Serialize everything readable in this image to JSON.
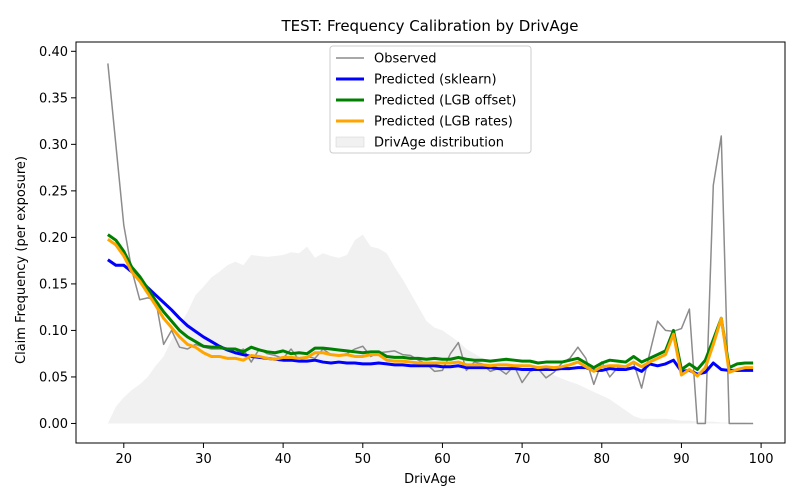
{
  "chart_data": {
    "type": "line",
    "title": "TEST: Frequency Calibration by DrivAge",
    "xlabel": "DrivAge",
    "ylabel": "Claim Frequency (per exposure)",
    "xlim": [
      14,
      103
    ],
    "ylim": [
      -0.021,
      0.41
    ],
    "x_ticks": [
      20,
      30,
      40,
      50,
      60,
      70,
      80,
      90,
      100
    ],
    "y_ticks": [
      0.0,
      0.05,
      0.1,
      0.15,
      0.2,
      0.25,
      0.3,
      0.35,
      0.4
    ],
    "y_tick_labels": [
      "0.00",
      "0.05",
      "0.10",
      "0.15",
      "0.20",
      "0.25",
      "0.30",
      "0.35",
      "0.40"
    ],
    "grid": false,
    "legend_position": "upper center",
    "x": [
      18,
      19,
      20,
      21,
      22,
      23,
      24,
      25,
      26,
      27,
      28,
      29,
      30,
      31,
      32,
      33,
      34,
      35,
      36,
      37,
      38,
      39,
      40,
      41,
      42,
      43,
      44,
      45,
      46,
      47,
      48,
      49,
      50,
      51,
      52,
      53,
      54,
      55,
      56,
      57,
      58,
      59,
      60,
      61,
      62,
      63,
      64,
      65,
      66,
      67,
      68,
      69,
      70,
      71,
      72,
      73,
      74,
      75,
      76,
      77,
      78,
      79,
      80,
      81,
      82,
      83,
      84,
      85,
      86,
      87,
      88,
      89,
      90,
      91,
      92,
      93,
      94,
      95,
      96,
      97,
      98,
      99
    ],
    "distribution": {
      "name": "DrivAge distribution",
      "color": "#e0e0e0",
      "values": [
        0.0,
        0.018,
        0.028,
        0.036,
        0.042,
        0.05,
        0.062,
        0.072,
        0.09,
        0.105,
        0.12,
        0.138,
        0.147,
        0.157,
        0.163,
        0.17,
        0.174,
        0.17,
        0.181,
        0.18,
        0.179,
        0.18,
        0.181,
        0.184,
        0.183,
        0.19,
        0.178,
        0.183,
        0.18,
        0.178,
        0.181,
        0.197,
        0.203,
        0.19,
        0.188,
        0.183,
        0.168,
        0.155,
        0.14,
        0.125,
        0.11,
        0.103,
        0.1,
        0.094,
        0.088,
        0.08,
        0.075,
        0.07,
        0.068,
        0.068,
        0.068,
        0.066,
        0.064,
        0.061,
        0.058,
        0.055,
        0.052,
        0.048,
        0.045,
        0.042,
        0.038,
        0.034,
        0.03,
        0.026,
        0.02,
        0.014,
        0.008,
        0.005,
        0.005,
        0.005,
        0.005,
        0.004,
        0.003,
        0.003,
        0.002,
        0.002,
        0.002,
        0.001,
        0.001,
        0.001,
        0.001,
        0.0
      ]
    },
    "series": [
      {
        "name": "Observed",
        "color": "#8c8c8c",
        "width": 1.5,
        "values": [
          0.387,
          0.3,
          0.213,
          0.165,
          0.133,
          0.135,
          0.133,
          0.085,
          0.1,
          0.082,
          0.08,
          0.085,
          0.082,
          0.08,
          0.08,
          0.08,
          0.075,
          0.08,
          0.066,
          0.08,
          0.075,
          0.073,
          0.07,
          0.08,
          0.068,
          0.072,
          0.07,
          0.08,
          0.074,
          0.073,
          0.075,
          0.08,
          0.083,
          0.072,
          0.076,
          0.077,
          0.078,
          0.074,
          0.073,
          0.068,
          0.064,
          0.056,
          0.057,
          0.075,
          0.087,
          0.057,
          0.066,
          0.064,
          0.056,
          0.059,
          0.053,
          0.062,
          0.044,
          0.056,
          0.059,
          0.049,
          0.055,
          0.065,
          0.07,
          0.082,
          0.07,
          0.042,
          0.066,
          0.05,
          0.06,
          0.06,
          0.065,
          0.038,
          0.075,
          0.11,
          0.1,
          0.099,
          0.102,
          0.123,
          0.0,
          0.0,
          0.256,
          0.309,
          0.0,
          0.0,
          0.0,
          0.0
        ]
      },
      {
        "name": "Predicted (sklearn)",
        "color": "#0000ff",
        "width": 3,
        "values": [
          0.176,
          0.17,
          0.17,
          0.163,
          0.155,
          0.146,
          0.138,
          0.13,
          0.122,
          0.113,
          0.105,
          0.099,
          0.093,
          0.088,
          0.083,
          0.079,
          0.076,
          0.074,
          0.072,
          0.071,
          0.07,
          0.069,
          0.068,
          0.068,
          0.067,
          0.067,
          0.068,
          0.066,
          0.065,
          0.066,
          0.065,
          0.065,
          0.064,
          0.064,
          0.065,
          0.064,
          0.063,
          0.063,
          0.062,
          0.062,
          0.062,
          0.062,
          0.061,
          0.061,
          0.062,
          0.06,
          0.06,
          0.06,
          0.06,
          0.059,
          0.059,
          0.059,
          0.058,
          0.058,
          0.058,
          0.058,
          0.058,
          0.059,
          0.059,
          0.06,
          0.06,
          0.057,
          0.057,
          0.059,
          0.058,
          0.058,
          0.06,
          0.056,
          0.064,
          0.062,
          0.064,
          0.068,
          0.056,
          0.057,
          0.053,
          0.055,
          0.065,
          0.058,
          0.057,
          0.057,
          0.057,
          0.057
        ]
      },
      {
        "name": "Predicted (LGB offset)",
        "color": "#008000",
        "width": 3,
        "values": [
          0.203,
          0.197,
          0.185,
          0.168,
          0.158,
          0.145,
          0.132,
          0.12,
          0.11,
          0.1,
          0.093,
          0.088,
          0.083,
          0.082,
          0.082,
          0.08,
          0.08,
          0.077,
          0.082,
          0.079,
          0.077,
          0.076,
          0.078,
          0.075,
          0.076,
          0.075,
          0.081,
          0.081,
          0.08,
          0.079,
          0.078,
          0.077,
          0.076,
          0.077,
          0.077,
          0.072,
          0.071,
          0.071,
          0.07,
          0.07,
          0.069,
          0.07,
          0.069,
          0.069,
          0.071,
          0.069,
          0.068,
          0.068,
          0.067,
          0.068,
          0.069,
          0.068,
          0.067,
          0.067,
          0.065,
          0.066,
          0.066,
          0.066,
          0.068,
          0.07,
          0.065,
          0.06,
          0.065,
          0.068,
          0.067,
          0.066,
          0.072,
          0.066,
          0.07,
          0.074,
          0.078,
          0.1,
          0.058,
          0.064,
          0.058,
          0.068,
          0.09,
          0.113,
          0.06,
          0.064,
          0.065,
          0.065
        ]
      },
      {
        "name": "Predicted (LGB rates)",
        "color": "#ffa500",
        "width": 3,
        "values": [
          0.198,
          0.192,
          0.18,
          0.163,
          0.153,
          0.14,
          0.127,
          0.113,
          0.103,
          0.093,
          0.085,
          0.082,
          0.076,
          0.072,
          0.072,
          0.07,
          0.07,
          0.068,
          0.073,
          0.072,
          0.07,
          0.069,
          0.071,
          0.071,
          0.07,
          0.071,
          0.076,
          0.076,
          0.074,
          0.073,
          0.074,
          0.072,
          0.072,
          0.074,
          0.074,
          0.068,
          0.067,
          0.067,
          0.066,
          0.065,
          0.065,
          0.065,
          0.065,
          0.065,
          0.066,
          0.063,
          0.063,
          0.063,
          0.062,
          0.063,
          0.063,
          0.062,
          0.062,
          0.062,
          0.06,
          0.061,
          0.06,
          0.061,
          0.063,
          0.066,
          0.061,
          0.056,
          0.061,
          0.062,
          0.062,
          0.061,
          0.066,
          0.061,
          0.066,
          0.07,
          0.074,
          0.096,
          0.052,
          0.058,
          0.051,
          0.06,
          0.085,
          0.113,
          0.055,
          0.058,
          0.06,
          0.06
        ]
      }
    ],
    "legend_order": [
      "Observed",
      "Predicted (sklearn)",
      "Predicted (LGB offset)",
      "Predicted (LGB rates)",
      "DrivAge distribution"
    ]
  }
}
